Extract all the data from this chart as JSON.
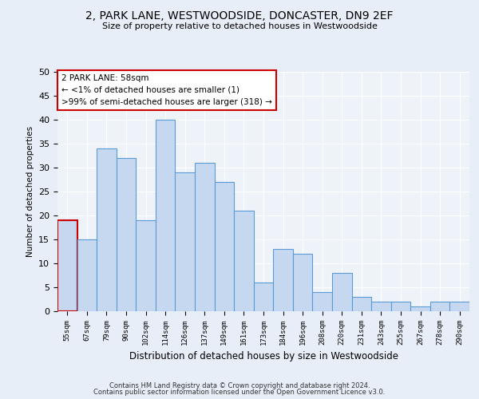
{
  "title1": "2, PARK LANE, WESTWOODSIDE, DONCASTER, DN9 2EF",
  "title2": "Size of property relative to detached houses in Westwoodside",
  "xlabel": "Distribution of detached houses by size in Westwoodside",
  "ylabel": "Number of detached properties",
  "categories": [
    "55sqm",
    "67sqm",
    "79sqm",
    "90sqm",
    "102sqm",
    "114sqm",
    "126sqm",
    "137sqm",
    "149sqm",
    "161sqm",
    "173sqm",
    "184sqm",
    "196sqm",
    "208sqm",
    "220sqm",
    "231sqm",
    "243sqm",
    "255sqm",
    "267sqm",
    "278sqm",
    "290sqm"
  ],
  "values": [
    19,
    15,
    34,
    32,
    19,
    40,
    29,
    31,
    27,
    21,
    6,
    13,
    12,
    4,
    8,
    3,
    2,
    2,
    1,
    2,
    2
  ],
  "bar_color": "#c5d8f0",
  "bar_edge_color": "#5b9bd5",
  "highlight_bar_edge_color": "#cc0000",
  "highlight_bar_index": 0,
  "ylim": [
    0,
    50
  ],
  "yticks": [
    0,
    5,
    10,
    15,
    20,
    25,
    30,
    35,
    40,
    45,
    50
  ],
  "annotation_box_text": "2 PARK LANE: 58sqm\n← <1% of detached houses are smaller (1)\n>99% of semi-detached houses are larger (318) →",
  "footer1": "Contains HM Land Registry data © Crown copyright and database right 2024.",
  "footer2": "Contains public sector information licensed under the Open Government Licence v3.0.",
  "bg_color": "#e8eef7",
  "plot_bg_color": "#eef2f9"
}
